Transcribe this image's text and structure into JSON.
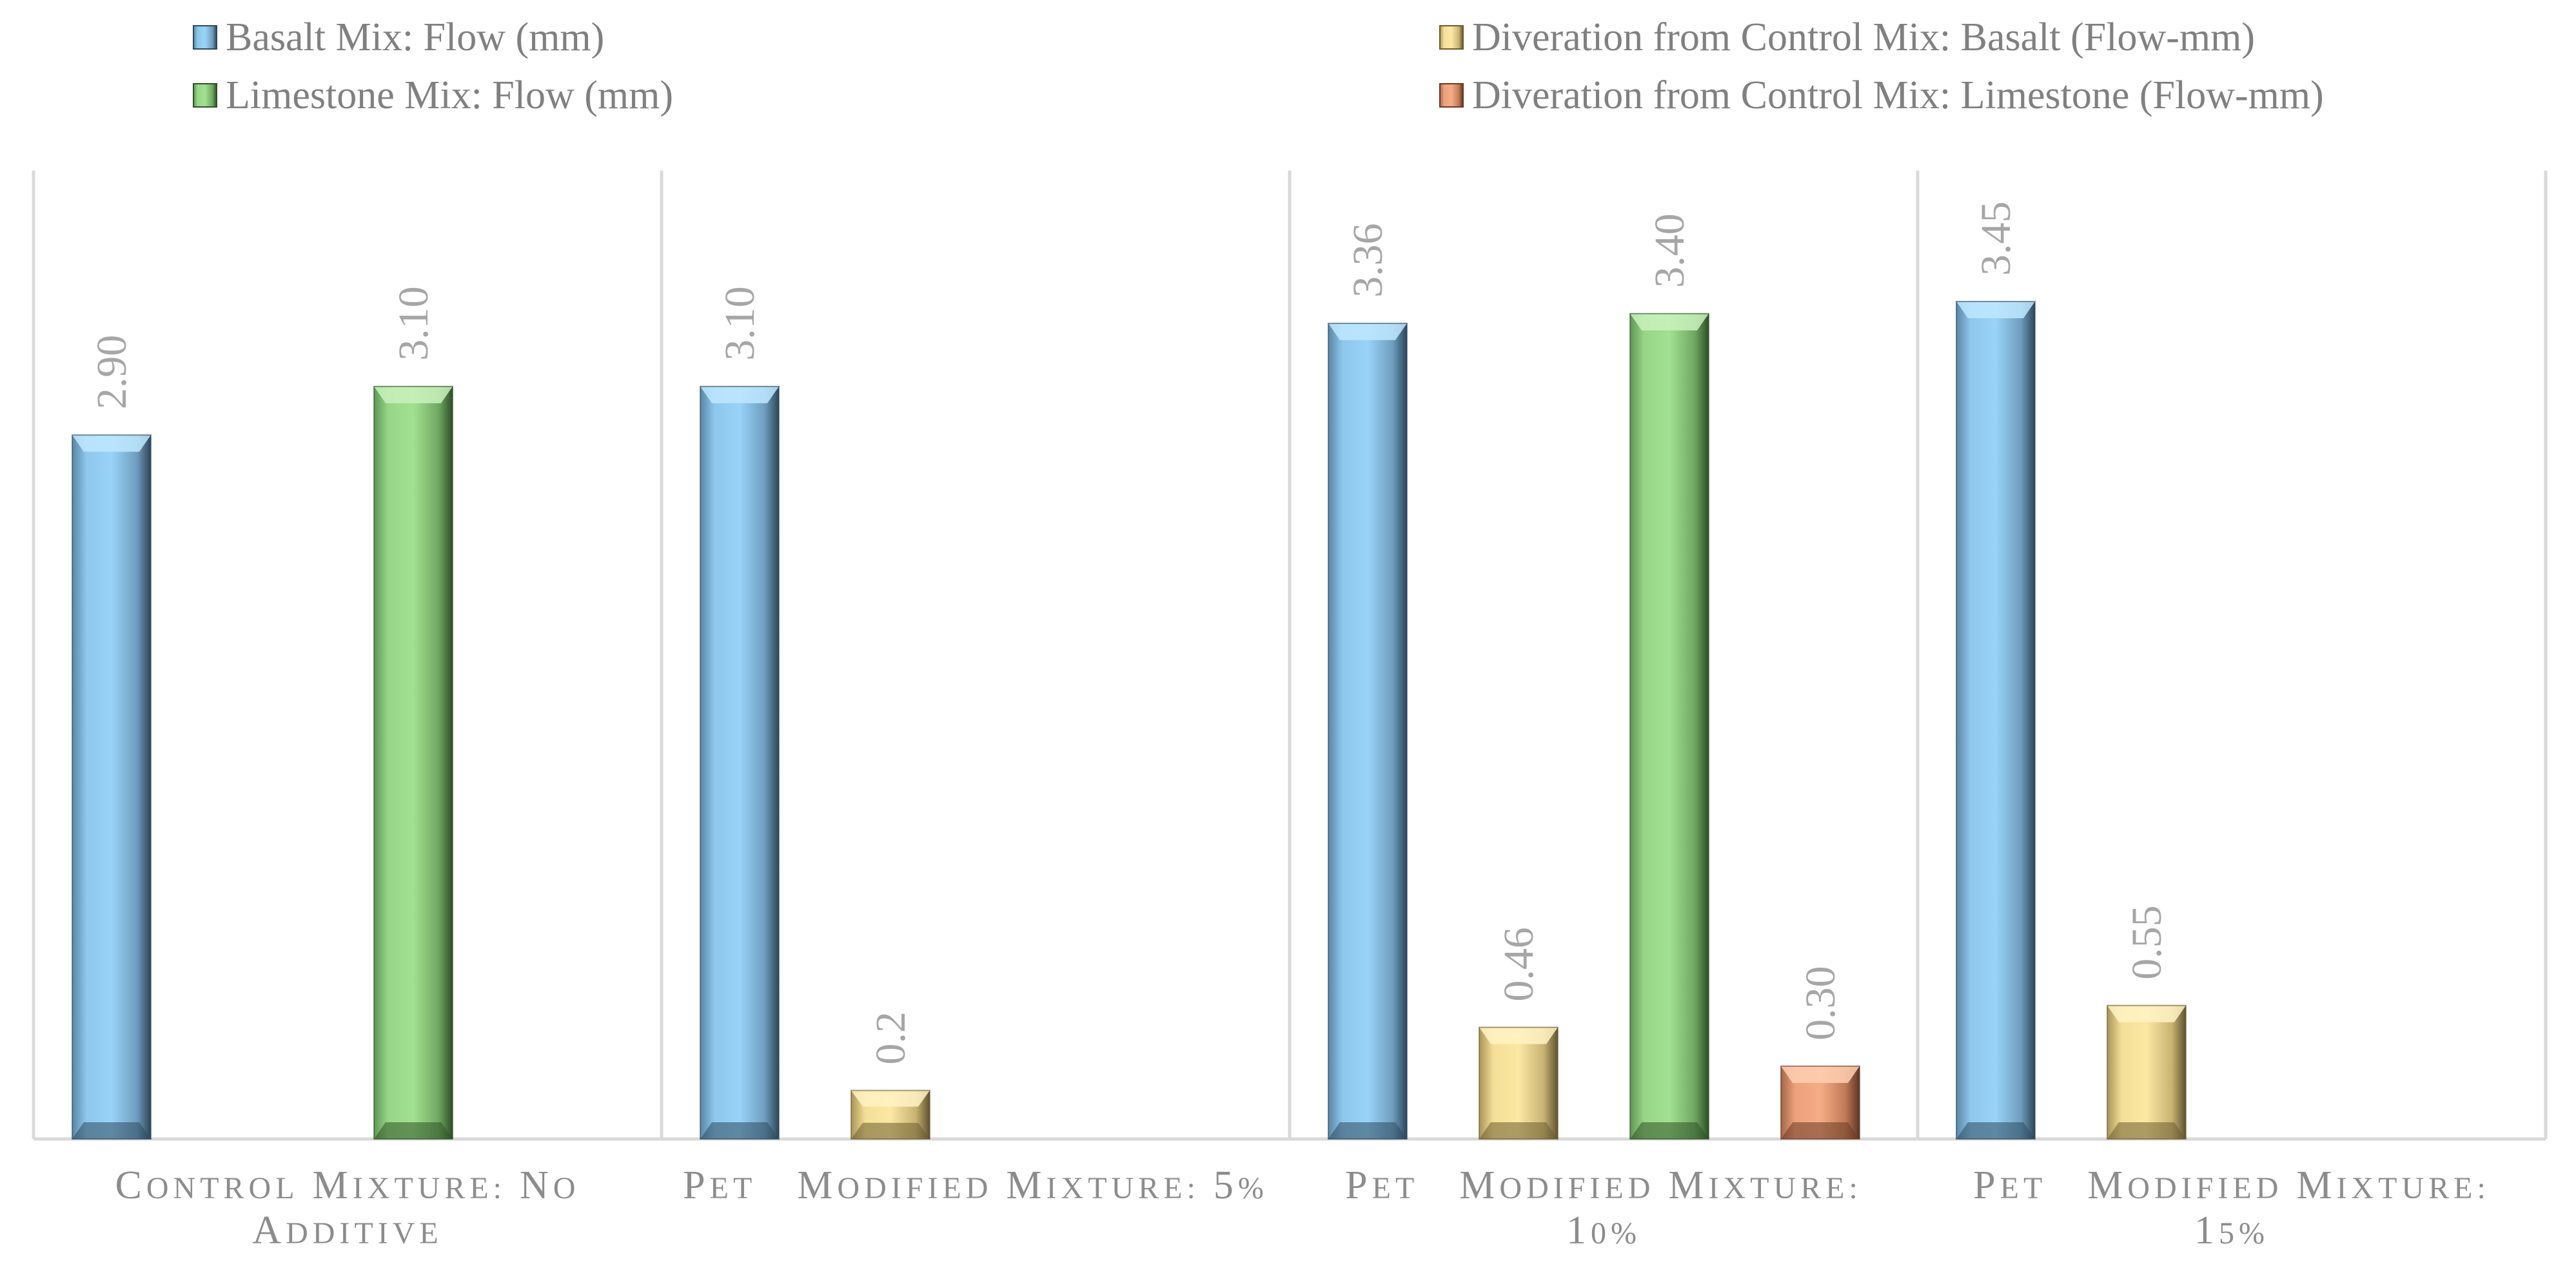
{
  "chart_data": {
    "type": "bar",
    "title": "",
    "xlabel": "",
    "ylabel": "",
    "ylim": [
      0,
      3.75
    ],
    "grid": false,
    "legend_position": "top",
    "categories": [
      [
        "Control Mixture: No",
        "Additive"
      ],
      [
        "PET   Modified Mixture: 5%"
      ],
      [
        "PET   Modified Mixture:",
        "10%"
      ],
      [
        "PET   Modified Mixture:",
        "15%"
      ]
    ],
    "series": [
      {
        "name": "Basalt Mix: Flow (mm)",
        "color": "#92cdf2",
        "values": [
          2.9,
          3.1,
          3.36,
          3.45
        ],
        "labels": [
          "2.90",
          "3.10",
          "3.36",
          "3.45"
        ]
      },
      {
        "name": "Diveration from Control Mix: Basalt (Flow-mm)",
        "color": "#f9e49a",
        "values": [
          null,
          0.2,
          0.46,
          0.55
        ],
        "labels": [
          "",
          "0.2",
          "0.46",
          "0.55"
        ]
      },
      {
        "name": "Limestone Mix: Flow (mm)",
        "color": "#9edc8e",
        "values": [
          3.1,
          null,
          3.4,
          null
        ],
        "labels": [
          "3.10",
          "",
          "3.40",
          ""
        ]
      },
      {
        "name": "Diveration from Control Mix: Limestone (Flow-mm)",
        "color": "#f2a77e",
        "values": [
          null,
          null,
          0.3,
          null
        ],
        "labels": [
          "",
          "",
          "0.30",
          ""
        ]
      }
    ]
  }
}
